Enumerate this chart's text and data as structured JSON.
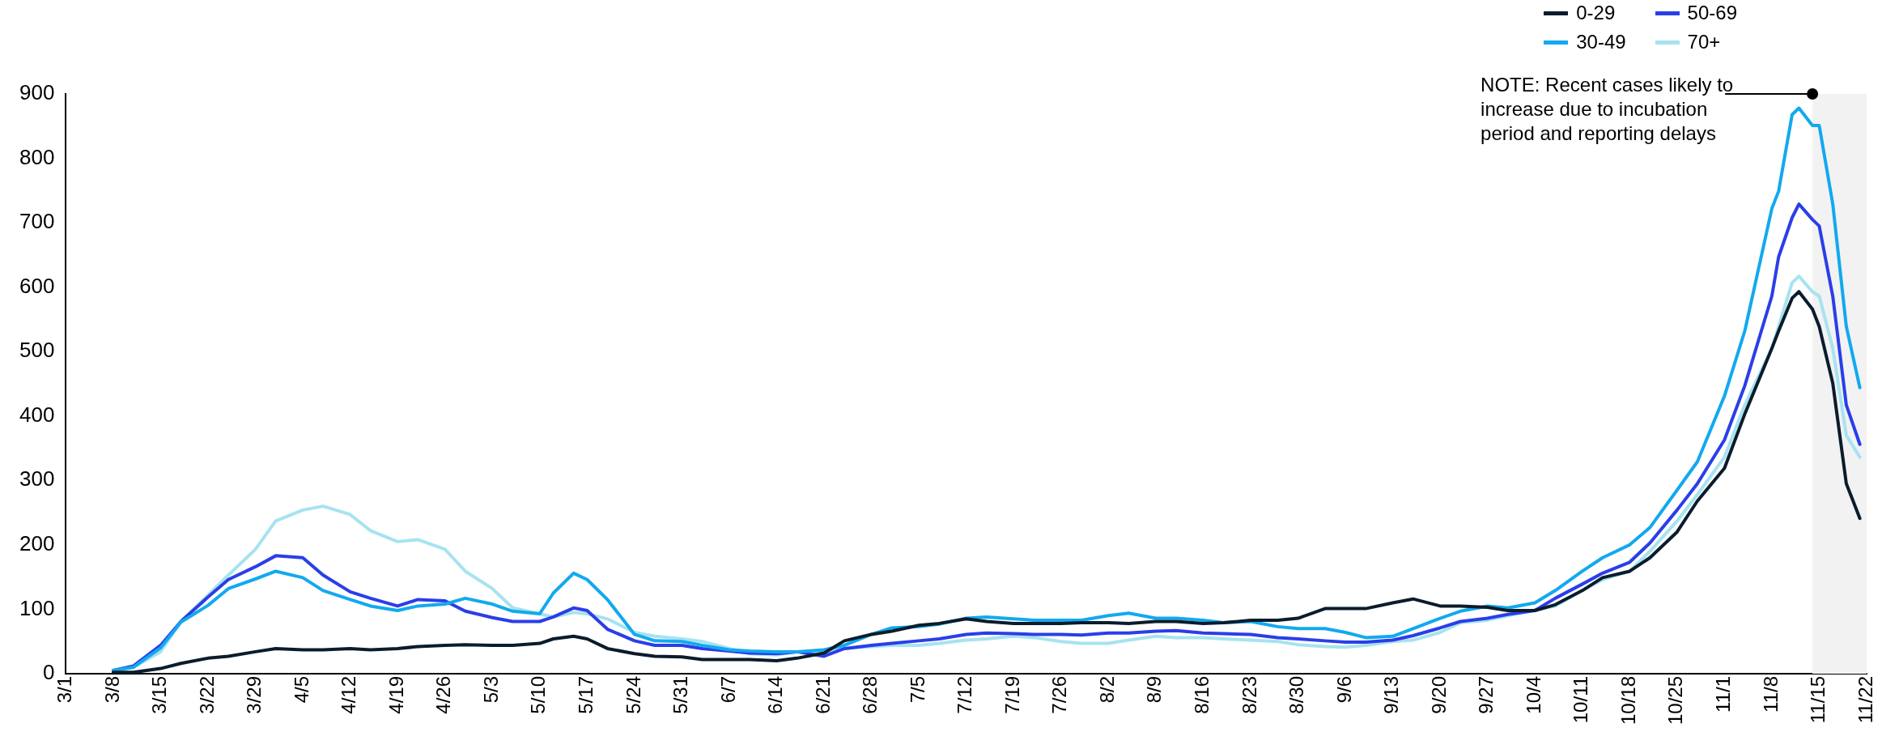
{
  "chart_data": {
    "type": "line",
    "x": [
      "--03-08",
      "--03-11",
      "--03-15",
      "--03-18",
      "--03-22",
      "--03-25",
      "--03-29",
      "--04-01",
      "--04-05",
      "--04-08",
      "--04-12",
      "--04-15",
      "--04-19",
      "--04-22",
      "--04-26",
      "--04-29",
      "--05-03",
      "--05-06",
      "--05-10",
      "--05-12",
      "--05-15",
      "--05-17",
      "--05-20",
      "--05-24",
      "--05-27",
      "--05-31",
      "--06-03",
      "--06-07",
      "--06-10",
      "--06-14",
      "--06-17",
      "--06-21",
      "--06-24",
      "--06-28",
      "--07-01",
      "--07-05",
      "--07-08",
      "--07-12",
      "--07-15",
      "--07-19",
      "--07-22",
      "--07-26",
      "--07-29",
      "--08-02",
      "--08-05",
      "--08-09",
      "--08-12",
      "--08-16",
      "--08-19",
      "--08-23",
      "--08-27",
      "--08-30",
      "--09-03",
      "--09-06",
      "--09-09",
      "--09-13",
      "--09-16",
      "--09-20",
      "--09-23",
      "--09-27",
      "--09-30",
      "--10-04",
      "--10-07",
      "--10-11",
      "--10-14",
      "--10-18",
      "--10-21",
      "--10-25",
      "--10-28",
      "--11-01",
      "--11-04",
      "--11-08",
      "--11-09",
      "--11-11",
      "--11-12",
      "--11-14",
      "--11-15",
      "--11-17",
      "--11-19",
      "--11-21"
    ],
    "series": [
      {
        "name": "0-29",
        "color": "#0b1c2c",
        "values": [
          2,
          2,
          8,
          16,
          24,
          27,
          34,
          39,
          37,
          37,
          39,
          37,
          39,
          42,
          44,
          45,
          44,
          44,
          47,
          54,
          58,
          54,
          39,
          31,
          27,
          26,
          22,
          22,
          22,
          20,
          24,
          32,
          51,
          61,
          66,
          75,
          78,
          85,
          81,
          78,
          78,
          78,
          79,
          79,
          78,
          81,
          81,
          78,
          79,
          83,
          83,
          86,
          101,
          101,
          101,
          110,
          116,
          105,
          105,
          103,
          98,
          98,
          107,
          129,
          149,
          159,
          180,
          220,
          268,
          319,
          403,
          505,
          532,
          583,
          593,
          566,
          539,
          451,
          295,
          241
        ]
      },
      {
        "name": "30-49",
        "color": "#12a9ef",
        "values": [
          5,
          10,
          40,
          80,
          106,
          132,
          147,
          159,
          149,
          129,
          115,
          105,
          98,
          105,
          108,
          117,
          108,
          97,
          93,
          125,
          156,
          146,
          115,
          61,
          51,
          50,
          44,
          37,
          35,
          34,
          34,
          37,
          44,
          61,
          71,
          73,
          77,
          86,
          88,
          85,
          83,
          83,
          83,
          90,
          94,
          86,
          86,
          83,
          79,
          81,
          73,
          70,
          70,
          64,
          56,
          58,
          70,
          86,
          97,
          105,
          102,
          110,
          129,
          159,
          180,
          200,
          227,
          285,
          329,
          431,
          532,
          722,
          749,
          868,
          878,
          851,
          851,
          729,
          539,
          444
        ]
      },
      {
        "name": "50-69",
        "color": "#2a3ee8",
        "values": [
          5,
          12,
          44,
          81,
          119,
          146,
          166,
          183,
          180,
          153,
          127,
          117,
          105,
          115,
          113,
          97,
          87,
          81,
          81,
          88,
          102,
          98,
          69,
          51,
          44,
          44,
          39,
          35,
          32,
          31,
          34,
          27,
          39,
          44,
          47,
          51,
          54,
          61,
          63,
          62,
          61,
          61,
          60,
          63,
          63,
          66,
          67,
          63,
          62,
          61,
          56,
          54,
          51,
          49,
          49,
          52,
          59,
          71,
          81,
          86,
          92,
          98,
          117,
          139,
          156,
          173,
          203,
          254,
          295,
          363,
          447,
          586,
          647,
          708,
          729,
          705,
          695,
          586,
          417,
          356
        ]
      },
      {
        "name": "70+",
        "color": "#a6e3f0",
        "values": [
          5,
          10,
          34,
          81,
          122,
          153,
          193,
          237,
          254,
          260,
          247,
          222,
          205,
          208,
          193,
          159,
          132,
          102,
          93,
          88,
          95,
          93,
          85,
          64,
          58,
          54,
          50,
          39,
          31,
          29,
          34,
          32,
          39,
          42,
          44,
          44,
          47,
          52,
          54,
          58,
          56,
          50,
          47,
          47,
          52,
          58,
          56,
          56,
          54,
          52,
          50,
          45,
          42,
          41,
          44,
          50,
          52,
          64,
          79,
          83,
          90,
          99,
          105,
          129,
          146,
          159,
          190,
          237,
          278,
          336,
          417,
          505,
          539,
          607,
          617,
          593,
          586,
          505,
          370,
          336
        ]
      }
    ],
    "xlim": [
      "--03-01",
      "--11-22"
    ],
    "xticks": [
      {
        "value": "--03-01",
        "label": "3/1"
      },
      {
        "value": "--03-08",
        "label": "3/8"
      },
      {
        "value": "--03-15",
        "label": "3/15"
      },
      {
        "value": "--03-22",
        "label": "3/22"
      },
      {
        "value": "--03-29",
        "label": "3/29"
      },
      {
        "value": "--04-05",
        "label": "4/5"
      },
      {
        "value": "--04-12",
        "label": "4/12"
      },
      {
        "value": "--04-19",
        "label": "4/19"
      },
      {
        "value": "--04-26",
        "label": "4/26"
      },
      {
        "value": "--05-03",
        "label": "5/3"
      },
      {
        "value": "--05-10",
        "label": "5/10"
      },
      {
        "value": "--05-17",
        "label": "5/17"
      },
      {
        "value": "--05-24",
        "label": "5/24"
      },
      {
        "value": "--05-31",
        "label": "5/31"
      },
      {
        "value": "--06-07",
        "label": "6/7"
      },
      {
        "value": "--06-14",
        "label": "6/14"
      },
      {
        "value": "--06-21",
        "label": "6/21"
      },
      {
        "value": "--06-28",
        "label": "6/28"
      },
      {
        "value": "--07-05",
        "label": "7/5"
      },
      {
        "value": "--07-12",
        "label": "7/12"
      },
      {
        "value": "--07-19",
        "label": "7/19"
      },
      {
        "value": "--07-26",
        "label": "7/26"
      },
      {
        "value": "--08-02",
        "label": "8/2"
      },
      {
        "value": "--08-09",
        "label": "8/9"
      },
      {
        "value": "--08-16",
        "label": "8/16"
      },
      {
        "value": "--08-23",
        "label": "8/23"
      },
      {
        "value": "--08-30",
        "label": "8/30"
      },
      {
        "value": "--09-06",
        "label": "9/6"
      },
      {
        "value": "--09-13",
        "label": "9/13"
      },
      {
        "value": "--09-20",
        "label": "9/20"
      },
      {
        "value": "--09-27",
        "label": "9/27"
      },
      {
        "value": "--10-04",
        "label": "10/4"
      },
      {
        "value": "--10-11",
        "label": "10/11"
      },
      {
        "value": "--10-18",
        "label": "10/18"
      },
      {
        "value": "--10-25",
        "label": "10/25"
      },
      {
        "value": "--11-01",
        "label": "11/1"
      },
      {
        "value": "--11-08",
        "label": "11/8"
      },
      {
        "value": "--11-15",
        "label": "11/15"
      },
      {
        "value": "--11-22",
        "label": "11/22"
      }
    ],
    "ylim": [
      0,
      900
    ],
    "yticks": [
      0,
      100,
      200,
      300,
      400,
      500,
      600,
      700,
      800,
      900
    ],
    "grid": false,
    "legend": "top right",
    "marker": "none",
    "line_style": "solid",
    "bands": [
      {
        "axis": "x",
        "from": "--11-14",
        "to": "--11-22",
        "color": "#f2f2f2",
        "label": "NOTE: Recent cases likely to increase due to incubation period and reporting delays"
      }
    ]
  }
}
